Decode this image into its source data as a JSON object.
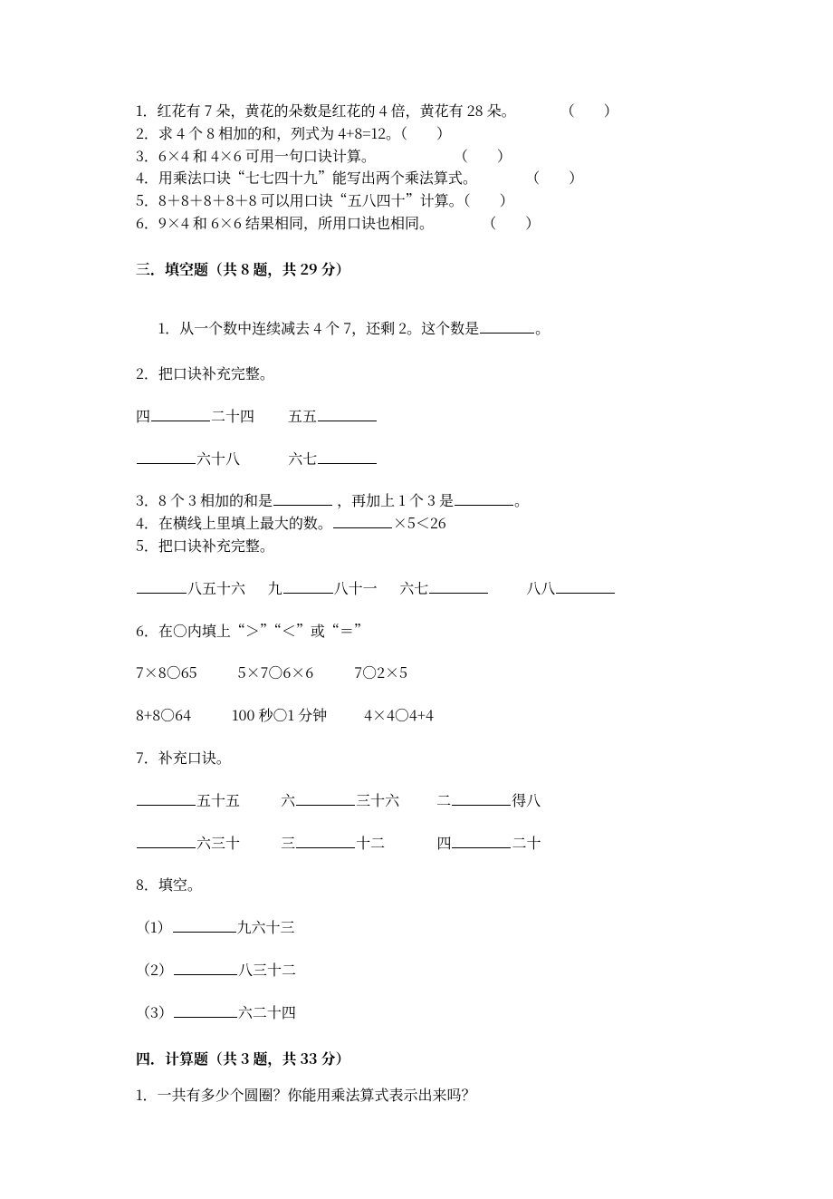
{
  "judgment": {
    "items": [
      {
        "pre": "1．红花有 7 朵，黄花的朵数是红花的 4 倍，黄花有 28 朵。",
        "paren": "（　　）"
      },
      {
        "pre": "2．求 4 个 8 相加的和，列式为 4+8=12。（　　）",
        "paren": ""
      },
      {
        "pre": "3．6×4 和 4×6 可用一句口诀计算。",
        "paren": "（　　）"
      },
      {
        "pre": "4．用乘法口诀“七七四十九”能写出两个乘法算式。",
        "paren": "（　　）"
      },
      {
        "pre": "5．8＋8＋8＋8＋8 可以用口诀“五八四十”计算。（　　）",
        "paren": ""
      },
      {
        "pre": "6．9×4 和 6×6 结果相同，所用口诀也相同。",
        "paren": "（　　）"
      }
    ]
  },
  "section3_title": "三．填空题（共 8 题，共 29 分）",
  "q1": {
    "pre": "1．从一个数中连续减去 4 个 7，还剩 2。这个数是",
    "post": "。"
  },
  "q2_intro": "2．把口诀补充完整。",
  "q2r1_a_pre": "四",
  "q2r1_a_post": "二十四",
  "q2r1_b_pre": "五五",
  "q2r2_a_post": "六十八",
  "q2r2_b_pre": "六七",
  "q3_pre": "3．8 个 3 相加的和是",
  "q3_mid": " ，再加上 1 个 3 是",
  "q3_post": "。",
  "q4_pre": "4．在横线上里填上最大的数。",
  "q4_post": "×5＜26",
  "q5_intro": "5．把口诀补充完整。",
  "q5_a_post": "八五十六",
  "q5_b_pre": "九",
  "q5_b_post": "八十一",
  "q5_c_pre": "六七",
  "q5_d_pre": "八八",
  "q6_intro": "6．在○内填上“＞”“＜”或“＝”",
  "q6_r1": [
    "7×8○65",
    "5×7○6×6",
    "7○2×5"
  ],
  "q6_r2": [
    "8+8○64",
    "100 秒○1 分钟",
    "4×4○4+4"
  ],
  "q7_intro": "7．补充口诀。",
  "q7_r1_a_post": "五十五",
  "q7_r1_b_pre": "六",
  "q7_r1_b_post": "三十六",
  "q7_r1_c_pre": "二",
  "q7_r1_c_post": "得八",
  "q7_r2_a_post": "六三十",
  "q7_r2_b_pre": "三",
  "q7_r2_b_post": "十二",
  "q7_r2_c_pre": "四",
  "q7_r2_c_post": "二十",
  "q8_intro": "8．填空。",
  "q8_items": [
    "（1）",
    "九六十三",
    "（2）",
    "八三十二",
    "（3）",
    "六二十四"
  ],
  "section4_title": "四．计算题（共 3 题，共 33 分）",
  "q4_1": "1．一共有多少个圆圈？你能用乘法算式表示出来吗？"
}
